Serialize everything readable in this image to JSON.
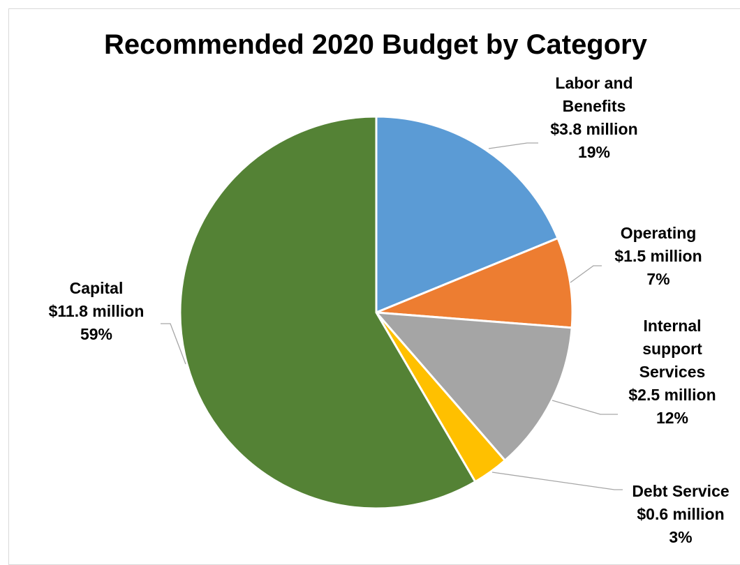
{
  "chart_data": {
    "type": "pie",
    "title": "Recommended 2020 Budget by Category",
    "start": "12 o'clock, clockwise",
    "slices": [
      {
        "name": "Labor and Benefits",
        "label_lines": [
          "Labor and",
          "Benefits"
        ],
        "amount_text": "$3.8 million",
        "percent_text": "19%",
        "value": 3.8,
        "color": "#5b9bd5"
      },
      {
        "name": "Operating",
        "label_lines": [
          "Operating"
        ],
        "amount_text": "$1.5 million",
        "percent_text": "7%",
        "value": 1.5,
        "color": "#ed7d31"
      },
      {
        "name": "Internal support Services",
        "label_lines": [
          "Internal",
          "support",
          "Services"
        ],
        "amount_text": "$2.5 million",
        "percent_text": "12%",
        "value": 2.5,
        "color": "#a5a5a5"
      },
      {
        "name": "Debt Service",
        "label_lines": [
          "Debt Service"
        ],
        "amount_text": "$0.6 million",
        "percent_text": "3%",
        "value": 0.6,
        "color": "#ffc000"
      },
      {
        "name": "Capital",
        "label_lines": [
          "Capital"
        ],
        "amount_text": "$11.8 million",
        "percent_text": "59%",
        "value": 11.8,
        "color": "#548235"
      }
    ]
  }
}
